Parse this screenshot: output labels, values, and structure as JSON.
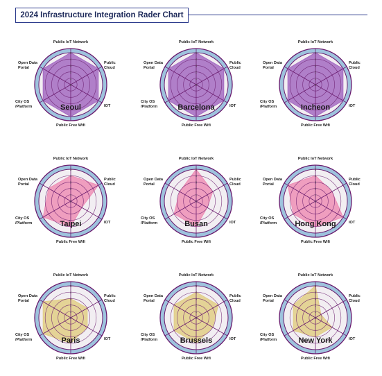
{
  "title": "2024 Infrastructure Integration Rader Chart",
  "colors": {
    "frame": "#6a1b6e",
    "purple_fill": "#a56bc2",
    "pink_fill": "#ee8fb6",
    "gold_fill": "#e2ce86",
    "outer_ring": "#9ec3dd"
  },
  "chart_data": [
    {
      "type": "radar",
      "city": "Seoul",
      "fill": "purple",
      "axes": [
        "Public IoT Network",
        "Public Cloud",
        "IOT",
        "Public Free Wifi",
        "City OS /Platform",
        "Open Data Portal"
      ],
      "ticks": [
        "0",
        "1",
        "2",
        "3",
        "4",
        "5"
      ],
      "rmax": 5,
      "values": [
        5,
        5,
        5,
        5,
        5,
        5
      ]
    },
    {
      "type": "radar",
      "city": "Barcelona",
      "fill": "purple",
      "axes": [
        "Public IoT Network",
        "Public Cloud",
        "IOT",
        "Public Free Wifi",
        "City OS /Platform",
        "Open Data Portal"
      ],
      "ticks": [
        "0",
        "1",
        "2",
        "3",
        "4",
        "5"
      ],
      "rmax": 5,
      "values": [
        5,
        5,
        5,
        5,
        5,
        5
      ]
    },
    {
      "type": "radar",
      "city": "Incheon",
      "fill": "purple",
      "axes": [
        "Public IoT Network",
        "Public Cloud",
        "IOT",
        "Public Free Wifi",
        "City OS /Platform",
        "Open Data Portal"
      ],
      "ticks": [
        "0",
        "1",
        "2",
        "3",
        "4",
        "5"
      ],
      "rmax": 5,
      "values": [
        5,
        5,
        5,
        5,
        5,
        5
      ]
    },
    {
      "type": "radar",
      "city": "Taipei",
      "fill": "pink",
      "axes": [
        "Public IoT Network",
        "Public Cloud",
        "IOT",
        "Public Free Wifi",
        "City OS /Platform",
        "Open Data Portal"
      ],
      "ticks": [
        "0",
        "1",
        "2",
        "3",
        "4",
        "5"
      ],
      "rmax": 5,
      "values": [
        4,
        5,
        2,
        4,
        5,
        4
      ]
    },
    {
      "type": "radar",
      "city": "Busan",
      "fill": "pink",
      "axes": [
        "Public IoT Network",
        "Public Cloud",
        "IOT",
        "Public Free Wifi",
        "City OS /Platform",
        "Open Data Portal"
      ],
      "ticks": [
        "0",
        "1",
        "2",
        "3",
        "4",
        "5"
      ],
      "rmax": 5,
      "values": [
        5,
        3,
        2,
        4,
        4,
        3
      ]
    },
    {
      "type": "radar",
      "city": "Hong Kong",
      "fill": "pink",
      "axes": [
        "Public IoT Network",
        "Public Cloud",
        "IOT",
        "Public Free Wifi",
        "City OS /Platform",
        "Open Data Portal"
      ],
      "ticks": [
        "0",
        "1",
        "2",
        "3",
        "4",
        "5"
      ],
      "rmax": 5,
      "values": [
        4,
        3,
        5,
        4,
        4,
        5
      ]
    },
    {
      "type": "radar",
      "city": "Paris",
      "fill": "gold",
      "axes": [
        "Public IoT Network",
        "Public Cloud",
        "IOT",
        "Public Free Wifi",
        "City OS /Platform",
        "Open Data Portal"
      ],
      "ticks": [
        "0",
        "1",
        "2",
        "3",
        "4",
        "5"
      ],
      "rmax": 5,
      "values": [
        3,
        3,
        3,
        4,
        5,
        5
      ]
    },
    {
      "type": "radar",
      "city": "Brussels",
      "fill": "gold",
      "axes": [
        "Public IoT Network",
        "Public Cloud",
        "IOT",
        "Public Free Wifi",
        "City OS /Platform",
        "Open Data Portal"
      ],
      "ticks": [
        "0",
        "1",
        "2",
        "3",
        "4",
        "5"
      ],
      "rmax": 5,
      "values": [
        4,
        4,
        3,
        4,
        4,
        4
      ]
    },
    {
      "type": "radar",
      "city": "New York",
      "fill": "gold",
      "axes": [
        "Public IoT Network",
        "Public Cloud",
        "IOT",
        "Public Free Wifi",
        "City OS /Platform",
        "Open Data Portal"
      ],
      "ticks": [
        "0",
        "1",
        "2",
        "3",
        "4",
        "5"
      ],
      "rmax": 5,
      "values": [
        5,
        1,
        3,
        3,
        4,
        4
      ]
    }
  ]
}
